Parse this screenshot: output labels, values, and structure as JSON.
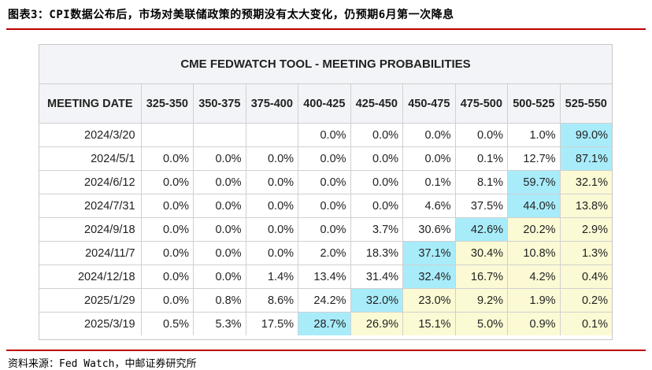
{
  "figure_title": "图表3：CPI数据公布后，市场对美联储政策的预期没有太大变化，仍预期6月第一次降息",
  "source": "资料来源：Fed Watch，中邮证券研究所",
  "table": {
    "title": "CME FEDWATCH TOOL - MEETING PROBABILITIES",
    "header": [
      "MEETING DATE",
      "325-350",
      "350-375",
      "375-400",
      "400-425",
      "425-450",
      "450-475",
      "475-500",
      "500-525",
      "525-550"
    ],
    "rows": [
      {
        "date": "2024/3/20",
        "values": [
          "",
          "",
          "",
          "0.0%",
          "0.0%",
          "0.0%",
          "0.0%",
          "1.0%",
          "99.0%"
        ],
        "hl": [
          0,
          0,
          0,
          0,
          0,
          0,
          0,
          0,
          1
        ]
      },
      {
        "date": "2024/5/1",
        "values": [
          "0.0%",
          "0.0%",
          "0.0%",
          "0.0%",
          "0.0%",
          "0.0%",
          "0.1%",
          "12.7%",
          "87.1%"
        ],
        "hl": [
          0,
          0,
          0,
          0,
          0,
          0,
          0,
          0,
          1
        ]
      },
      {
        "date": "2024/6/12",
        "values": [
          "0.0%",
          "0.0%",
          "0.0%",
          "0.0%",
          "0.0%",
          "0.1%",
          "8.1%",
          "59.7%",
          "32.1%"
        ],
        "hl": [
          0,
          0,
          0,
          0,
          0,
          0,
          0,
          1,
          2
        ]
      },
      {
        "date": "2024/7/31",
        "values": [
          "0.0%",
          "0.0%",
          "0.0%",
          "0.0%",
          "0.0%",
          "4.6%",
          "37.5%",
          "44.0%",
          "13.8%"
        ],
        "hl": [
          0,
          0,
          0,
          0,
          0,
          0,
          0,
          1,
          2
        ]
      },
      {
        "date": "2024/9/18",
        "values": [
          "0.0%",
          "0.0%",
          "0.0%",
          "0.0%",
          "3.7%",
          "30.6%",
          "42.6%",
          "20.2%",
          "2.9%"
        ],
        "hl": [
          0,
          0,
          0,
          0,
          0,
          0,
          1,
          2,
          2
        ]
      },
      {
        "date": "2024/11/7",
        "values": [
          "0.0%",
          "0.0%",
          "0.0%",
          "2.0%",
          "18.3%",
          "37.1%",
          "30.4%",
          "10.8%",
          "1.3%"
        ],
        "hl": [
          0,
          0,
          0,
          0,
          0,
          1,
          2,
          2,
          2
        ]
      },
      {
        "date": "2024/12/18",
        "values": [
          "0.0%",
          "0.0%",
          "1.4%",
          "13.4%",
          "31.4%",
          "32.4%",
          "16.7%",
          "4.2%",
          "0.4%"
        ],
        "hl": [
          0,
          0,
          0,
          0,
          0,
          1,
          2,
          2,
          2
        ]
      },
      {
        "date": "2025/1/29",
        "values": [
          "0.0%",
          "0.8%",
          "8.6%",
          "24.2%",
          "32.0%",
          "23.0%",
          "9.2%",
          "1.9%",
          "0.2%"
        ],
        "hl": [
          0,
          0,
          0,
          0,
          1,
          2,
          2,
          2,
          2
        ]
      },
      {
        "date": "2025/3/19",
        "values": [
          "0.5%",
          "5.3%",
          "17.5%",
          "28.7%",
          "26.9%",
          "15.1%",
          "5.0%",
          "0.9%",
          "0.1%"
        ],
        "hl": [
          0,
          0,
          0,
          1,
          2,
          2,
          2,
          2,
          2
        ]
      }
    ]
  },
  "colors": {
    "rule": "#c00000",
    "highlight_current": "#a8ecfa",
    "highlight_cut": "#fbfad4",
    "header_bg": "#f3f4f7"
  }
}
